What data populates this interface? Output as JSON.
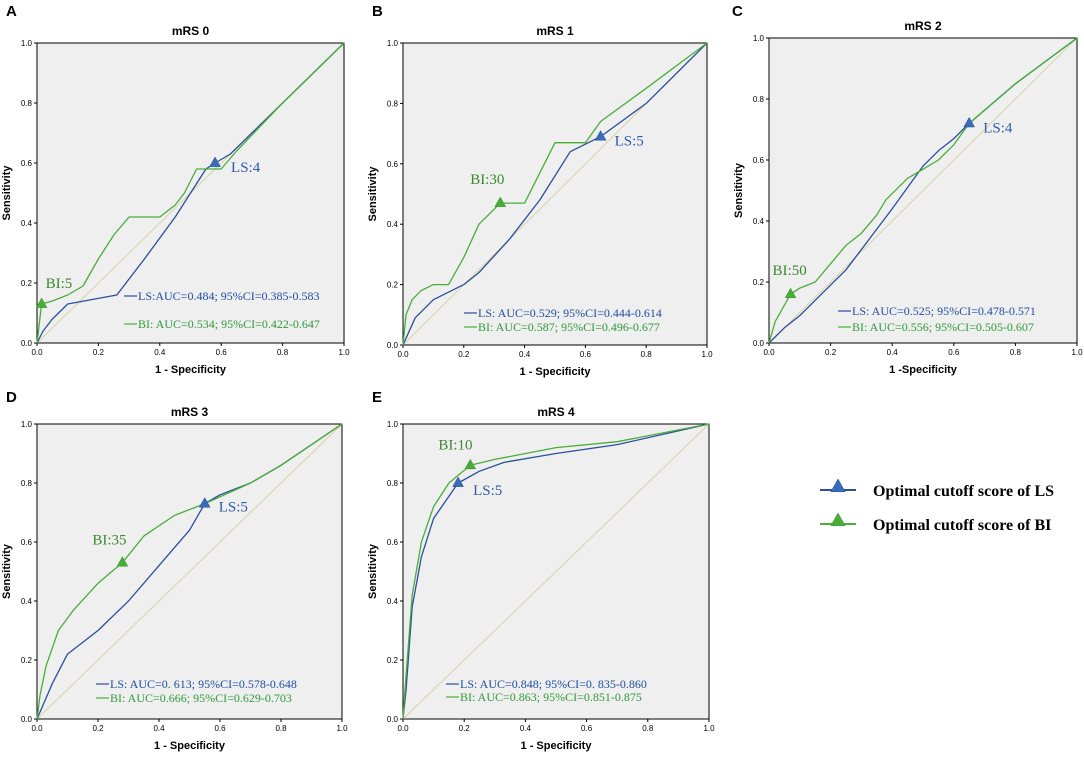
{
  "colors": {
    "ls": "#2a4f9c",
    "bi": "#49ad3a",
    "ls_text": "#2e5aa8",
    "bi_text": "#3a8a2e",
    "bi_stat_text": "#2f9a3a",
    "ls_stat_text": "#1f4fa0",
    "reference": "#d9d3a8",
    "plot_bg": "#efefef"
  },
  "legend": {
    "ls_label": "Optimal cutoff score of LS",
    "bi_label": "Optimal cutoff score of BI"
  },
  "chart_data": [
    {
      "panel": "A",
      "type": "line",
      "title": "mRS 0",
      "xlabel": "1 - Specificity",
      "ylabel": "Sensitivity",
      "xlim": [
        0,
        1
      ],
      "ylim": [
        0,
        1
      ],
      "ticks": [
        "0.0",
        "0.2",
        "0.4",
        "0.6",
        "0.8",
        "1.0"
      ],
      "series": [
        {
          "name": "LS",
          "x": [
            0,
            0.02,
            0.05,
            0.1,
            0.26,
            0.35,
            0.45,
            0.55,
            0.58,
            0.63,
            0.8,
            1
          ],
          "y": [
            0,
            0.04,
            0.08,
            0.13,
            0.16,
            0.28,
            0.42,
            0.58,
            0.6,
            0.63,
            0.8,
            1
          ]
        },
        {
          "name": "BI",
          "x": [
            0,
            0.015,
            0.05,
            0.1,
            0.15,
            0.2,
            0.25,
            0.3,
            0.35,
            0.4,
            0.45,
            0.48,
            0.52,
            0.56,
            0.6,
            0.65,
            0.8,
            1
          ],
          "y": [
            0,
            0.13,
            0.14,
            0.16,
            0.19,
            0.28,
            0.36,
            0.42,
            0.42,
            0.42,
            0.46,
            0.5,
            0.58,
            0.58,
            0.58,
            0.64,
            0.8,
            1
          ]
        }
      ],
      "cutoffs": {
        "ls": {
          "x": 0.58,
          "y": 0.6,
          "label": "LS:4"
        },
        "bi": {
          "x": 0.015,
          "y": 0.13,
          "label": "BI:5"
        }
      },
      "stats": {
        "ls": "LS:AUC=0.484; 95%CI=0.385-0.583",
        "bi": "BI: AUC=0.534; 95%CI=0.422-0.647"
      }
    },
    {
      "panel": "B",
      "type": "line",
      "title": "mRS 1",
      "xlabel": "1 - Specificity",
      "ylabel": "Sensitivity",
      "xlim": [
        0,
        1
      ],
      "ylim": [
        0,
        1
      ],
      "ticks": [
        "0.0",
        "0.2",
        "0.4",
        "0.6",
        "0.8",
        "1.0"
      ],
      "series": [
        {
          "name": "LS",
          "x": [
            0,
            0.04,
            0.1,
            0.2,
            0.25,
            0.35,
            0.45,
            0.55,
            0.65,
            0.8,
            1
          ],
          "y": [
            0,
            0.09,
            0.15,
            0.2,
            0.24,
            0.35,
            0.48,
            0.64,
            0.69,
            0.8,
            1
          ]
        },
        {
          "name": "BI",
          "x": [
            0,
            0.01,
            0.03,
            0.06,
            0.1,
            0.15,
            0.2,
            0.25,
            0.32,
            0.4,
            0.45,
            0.5,
            0.55,
            0.6,
            0.65,
            0.8,
            1
          ],
          "y": [
            0,
            0.1,
            0.15,
            0.18,
            0.2,
            0.2,
            0.29,
            0.4,
            0.47,
            0.47,
            0.57,
            0.67,
            0.67,
            0.67,
            0.74,
            0.85,
            1
          ]
        }
      ],
      "cutoffs": {
        "ls": {
          "x": 0.65,
          "y": 0.69,
          "label": "LS:5"
        },
        "bi": {
          "x": 0.32,
          "y": 0.47,
          "label": "BI:30"
        }
      },
      "stats": {
        "ls": "LS: AUC=0.529; 95%CI=0.444-0.614",
        "bi": "BI: AUC=0.587; 95%CI=0.496-0.677"
      }
    },
    {
      "panel": "C",
      "type": "line",
      "title": "mRS 2",
      "xlabel": "1 -Specificity",
      "ylabel": "Sensitivity",
      "xlim": [
        0,
        1
      ],
      "ylim": [
        0,
        1
      ],
      "ticks": [
        "0.0",
        "0.2",
        "0.4",
        "0.6",
        "0.8",
        "1.0"
      ],
      "series": [
        {
          "name": "LS",
          "x": [
            0,
            0.05,
            0.1,
            0.25,
            0.4,
            0.5,
            0.55,
            0.6,
            0.65,
            0.8,
            1
          ],
          "y": [
            0,
            0.05,
            0.09,
            0.24,
            0.44,
            0.58,
            0.63,
            0.67,
            0.72,
            0.85,
            1
          ]
        },
        {
          "name": "BI",
          "x": [
            0,
            0.02,
            0.07,
            0.1,
            0.15,
            0.2,
            0.25,
            0.3,
            0.35,
            0.38,
            0.45,
            0.5,
            0.55,
            0.6,
            0.65,
            0.8,
            1
          ],
          "y": [
            0,
            0.07,
            0.16,
            0.18,
            0.2,
            0.26,
            0.32,
            0.36,
            0.42,
            0.47,
            0.54,
            0.57,
            0.6,
            0.65,
            0.72,
            0.85,
            1
          ]
        }
      ],
      "cutoffs": {
        "ls": {
          "x": 0.65,
          "y": 0.72,
          "label": "LS:4"
        },
        "bi": {
          "x": 0.07,
          "y": 0.16,
          "label": "BI:50"
        }
      },
      "stats": {
        "ls": "LS: AUC=0.525; 95%CI=0.478-0.571",
        "bi": "BI: AUC=0.556; 95%CI=0.505-0.607"
      }
    },
    {
      "panel": "D",
      "type": "line",
      "title": "mRS 3",
      "xlabel": "1 - Specificity",
      "ylabel": "Sensitivity",
      "xlim": [
        0,
        1
      ],
      "ylim": [
        0,
        1
      ],
      "ticks": [
        "0.0",
        "0.2",
        "0.4",
        "0.6",
        "0.8",
        "1.0"
      ],
      "series": [
        {
          "name": "LS",
          "x": [
            0,
            0.05,
            0.1,
            0.2,
            0.3,
            0.4,
            0.5,
            0.55,
            0.6,
            0.7,
            0.8,
            1
          ],
          "y": [
            0,
            0.12,
            0.22,
            0.3,
            0.4,
            0.52,
            0.64,
            0.73,
            0.76,
            0.8,
            0.86,
            1
          ]
        },
        {
          "name": "BI",
          "x": [
            0,
            0.01,
            0.03,
            0.07,
            0.12,
            0.2,
            0.28,
            0.35,
            0.45,
            0.55,
            0.7,
            0.8,
            1
          ],
          "y": [
            0,
            0.08,
            0.18,
            0.3,
            0.37,
            0.46,
            0.53,
            0.62,
            0.69,
            0.73,
            0.8,
            0.86,
            1
          ]
        }
      ],
      "cutoffs": {
        "ls": {
          "x": 0.55,
          "y": 0.73,
          "label": "LS:5"
        },
        "bi": {
          "x": 0.28,
          "y": 0.53,
          "label": "BI:35"
        }
      },
      "stats": {
        "ls": "LS: AUC=0. 613; 95%CI=0.578-0.648",
        "bi": "BI: AUC=0.666; 95%CI=0.629-0.703"
      }
    },
    {
      "panel": "E",
      "type": "line",
      "title": "mRS 4",
      "xlabel": "1 - Specificity",
      "ylabel": "Sensitivity",
      "xlim": [
        0,
        1
      ],
      "ylim": [
        0,
        1
      ],
      "ticks": [
        "0.0",
        "0.2",
        "0.4",
        "0.6",
        "0.8",
        "1.0"
      ],
      "series": [
        {
          "name": "LS",
          "x": [
            0,
            0.01,
            0.03,
            0.06,
            0.1,
            0.18,
            0.25,
            0.33,
            0.5,
            0.7,
            1
          ],
          "y": [
            0,
            0.1,
            0.38,
            0.55,
            0.68,
            0.8,
            0.84,
            0.87,
            0.9,
            0.93,
            1
          ]
        },
        {
          "name": "BI",
          "x": [
            0,
            0.01,
            0.03,
            0.06,
            0.1,
            0.15,
            0.22,
            0.3,
            0.5,
            0.7,
            1
          ],
          "y": [
            0,
            0.15,
            0.42,
            0.6,
            0.72,
            0.8,
            0.86,
            0.88,
            0.92,
            0.94,
            1
          ]
        }
      ],
      "cutoffs": {
        "ls": {
          "x": 0.18,
          "y": 0.8,
          "label": "LS:5"
        },
        "bi": {
          "x": 0.22,
          "y": 0.86,
          "label": "BI:10"
        }
      },
      "stats": {
        "ls": "LS: AUC=0.848; 95%CI=0. 835-0.860",
        "bi": "BI: AUC=0.863; 95%CI=0.851-0.875"
      }
    }
  ]
}
